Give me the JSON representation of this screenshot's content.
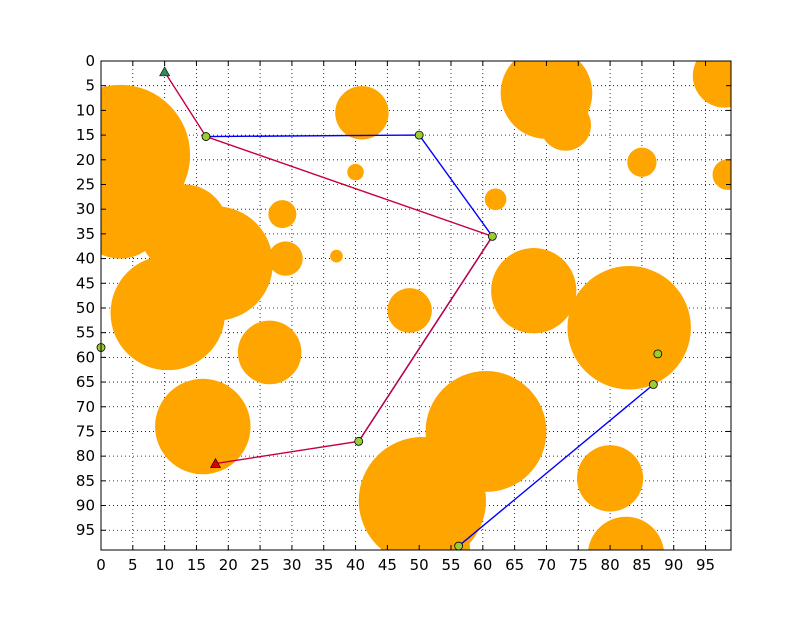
{
  "chart_data": {
    "type": "scatter",
    "title": "",
    "xlabel": "",
    "ylabel": "",
    "xlim": [
      0,
      99
    ],
    "ylim": [
      99,
      0
    ],
    "y_inverted": true,
    "grid": true,
    "grid_style": "dotted",
    "legend": "none",
    "x_ticks": [
      0,
      5,
      10,
      15,
      20,
      25,
      30,
      35,
      40,
      45,
      50,
      55,
      60,
      65,
      70,
      75,
      80,
      85,
      90,
      95
    ],
    "y_ticks": [
      0,
      5,
      10,
      15,
      20,
      25,
      30,
      35,
      40,
      45,
      50,
      55,
      60,
      65,
      70,
      75,
      80,
      85,
      90,
      95
    ],
    "colors": {
      "obstacle": "#ffa500",
      "node_fill": "#9acd32",
      "path_blue": "#0000ff",
      "path_red": "#c8003c",
      "start_marker": "#2e8b57",
      "goal_marker": "#e00000"
    },
    "obstacles": [
      {
        "x": 3,
        "y": 19,
        "r": 11
      },
      {
        "x": 3,
        "y": 31,
        "r": 7
      },
      {
        "x": 13,
        "y": 34,
        "r": 7
      },
      {
        "x": 18,
        "y": 41,
        "r": 9
      },
      {
        "x": 10.5,
        "y": 51,
        "r": 9
      },
      {
        "x": 16,
        "y": 74,
        "r": 7.5
      },
      {
        "x": 26.5,
        "y": 59,
        "r": 5
      },
      {
        "x": 28.5,
        "y": 31,
        "r": 2.2
      },
      {
        "x": 29,
        "y": 40,
        "r": 2.7
      },
      {
        "x": 37,
        "y": 39.5,
        "r": 1
      },
      {
        "x": 40,
        "y": 22.5,
        "r": 1.3
      },
      {
        "x": 41,
        "y": 10.5,
        "r": 4.2
      },
      {
        "x": 48.5,
        "y": 50.5,
        "r": 3.5
      },
      {
        "x": 50.5,
        "y": 89,
        "r": 10
      },
      {
        "x": 51,
        "y": 99,
        "r": 7
      },
      {
        "x": 60.5,
        "y": 75,
        "r": 9.5
      },
      {
        "x": 62,
        "y": 28,
        "r": 1.7
      },
      {
        "x": 68,
        "y": 46.5,
        "r": 6.7
      },
      {
        "x": 70,
        "y": 6.5,
        "r": 7.2
      },
      {
        "x": 73,
        "y": 13,
        "r": 4
      },
      {
        "x": 83,
        "y": 54,
        "r": 9.7
      },
      {
        "x": 80,
        "y": 84.5,
        "r": 5.2
      },
      {
        "x": 82.5,
        "y": 100,
        "r": 6
      },
      {
        "x": 85,
        "y": 20.5,
        "r": 2.3
      },
      {
        "x": 98,
        "y": 3,
        "r": 5
      },
      {
        "x": 98.5,
        "y": 23,
        "r": 2.4
      }
    ],
    "nodes": [
      {
        "x": 0,
        "y": 58
      },
      {
        "x": 16.5,
        "y": 15.3
      },
      {
        "x": 50,
        "y": 15
      },
      {
        "x": 61.5,
        "y": 35.5
      },
      {
        "x": 40.5,
        "y": 77
      },
      {
        "x": 87.5,
        "y": 59.3
      },
      {
        "x": 86.8,
        "y": 65.5
      },
      {
        "x": 56.2,
        "y": 98.2
      }
    ],
    "series": [
      {
        "color": "#0000ff",
        "points": [
          [
            16.5,
            15.3
          ],
          [
            50,
            15
          ],
          [
            61.5,
            35.5
          ],
          [
            40.5,
            77
          ]
        ]
      },
      {
        "color": "#0000ff",
        "points": [
          [
            86.8,
            65.5
          ],
          [
            56.2,
            98.2
          ]
        ]
      },
      {
        "color": "#c8003c",
        "points": [
          [
            10,
            2.2
          ],
          [
            16.5,
            15.3
          ],
          [
            61.5,
            35.5
          ],
          [
            40.5,
            77
          ],
          [
            18,
            81.5
          ]
        ]
      }
    ],
    "markers": [
      {
        "type": "triangle",
        "x": 10,
        "y": 2.2,
        "color": "#2e8b57"
      },
      {
        "type": "triangle",
        "x": 18,
        "y": 81.5,
        "color": "#e00000"
      }
    ]
  }
}
